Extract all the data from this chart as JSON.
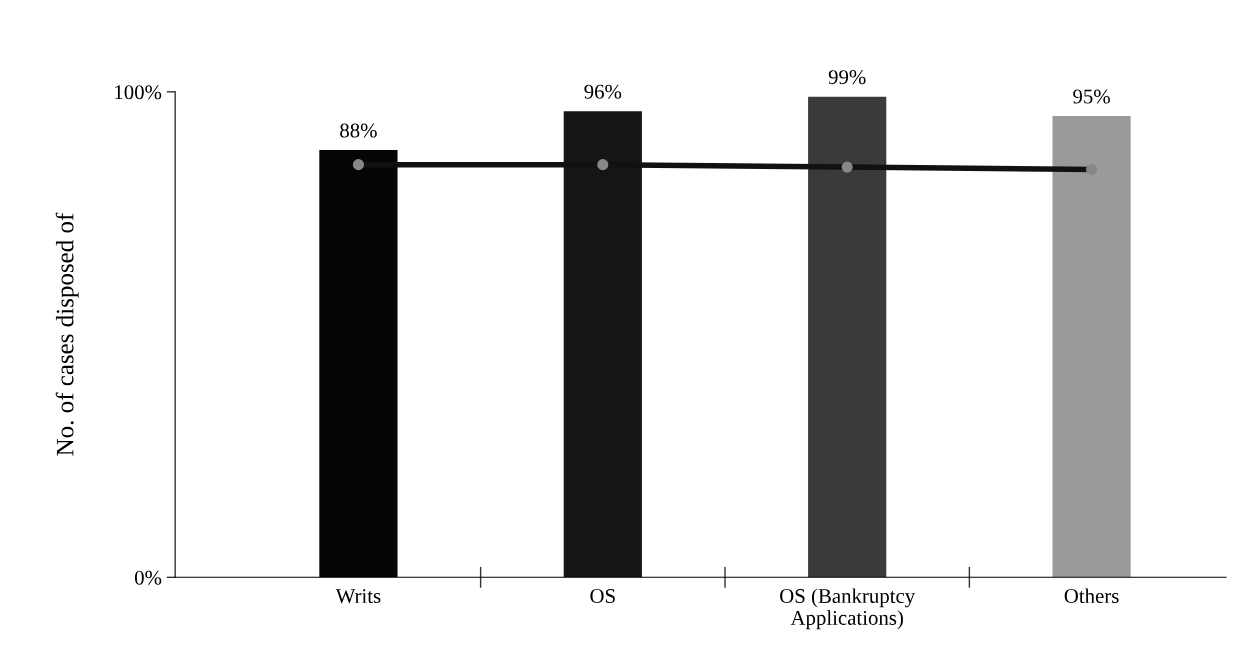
{
  "chart_data": {
    "type": "bar",
    "ylabel": "No. of cases disposed of",
    "categories": [
      "Writs",
      "OS",
      "OS (Bankruptcy\nApplications)",
      "Others"
    ],
    "series": [
      {
        "colors": [
          "#050505",
          "#151515",
          "#3a3a3a",
          "#9a9a9a"
        ],
        "values": [
          88,
          96,
          99,
          95
        ],
        "value_labels": [
          "88%",
          "96%",
          "99%",
          "95%"
        ]
      },
      {
        "type": "line",
        "color": "#111111",
        "values": [
          85,
          85,
          84.5,
          84
        ],
        "marker": "circle"
      }
    ],
    "ylim": [
      0,
      100
    ],
    "yticks": [
      {
        "value": 0,
        "label": "0%"
      },
      {
        "value": 100,
        "label": "100%"
      }
    ],
    "grid": false
  }
}
